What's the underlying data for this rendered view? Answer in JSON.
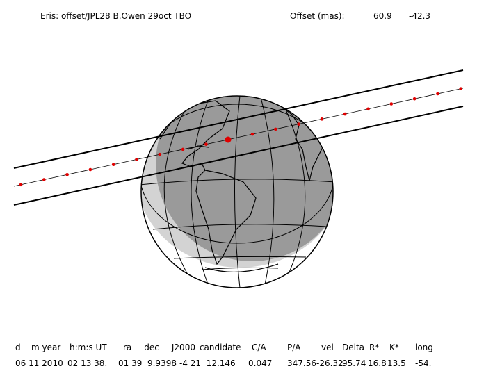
{
  "header": {
    "title": "Eris: offset/JPL28 B.Owen 29oct TBO",
    "offset_label": "Offset (mas):",
    "offset_x": "60.9",
    "offset_y": "-42.3"
  },
  "table": {
    "headers": [
      "d",
      "m year",
      "h:m:s UT",
      "ra___dec___J2000_candidate",
      "C/A",
      "P/A",
      "vel",
      "Delta",
      "R*",
      "K*",
      "long"
    ],
    "rows": [
      [
        "06 11 2010",
        "02 13 38.",
        "01 39  9.9398",
        "-4 21  12.146",
        "0.047",
        "347.56",
        "-26.32",
        "95.74",
        "16.8",
        "13.5",
        "-54."
      ]
    ]
  }
}
